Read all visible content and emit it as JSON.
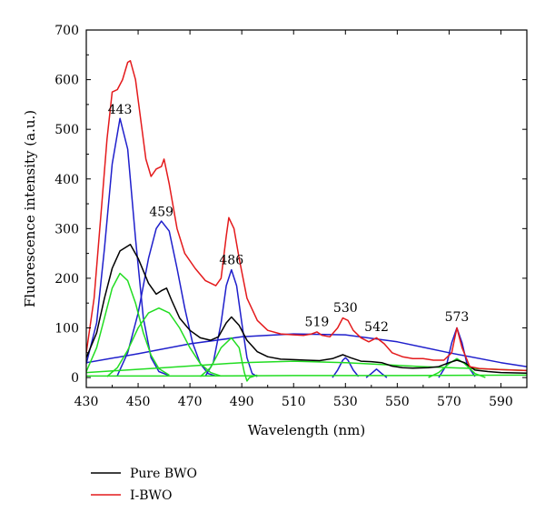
{
  "chart_data": {
    "type": "line",
    "title": "",
    "xlabel": "Wavelength (nm)",
    "ylabel": "Fluorescence intensity (a.u.)",
    "xlim": [
      430,
      600
    ],
    "ylim": [
      -20,
      700
    ],
    "xticks": [
      430,
      450,
      470,
      490,
      510,
      530,
      550,
      570,
      590
    ],
    "yticks": [
      0,
      100,
      200,
      300,
      400,
      500,
      600,
      700
    ],
    "grid": false,
    "legend_position": "bottom-left",
    "series": [
      {
        "name": "Pure BWO",
        "color": "#000000",
        "points": [
          [
            430,
            40
          ],
          [
            434,
            90
          ],
          [
            437,
            160
          ],
          [
            440,
            220
          ],
          [
            443,
            255
          ],
          [
            447,
            268
          ],
          [
            450,
            240
          ],
          [
            454,
            190
          ],
          [
            457,
            168
          ],
          [
            459,
            175
          ],
          [
            461,
            180
          ],
          [
            463,
            155
          ],
          [
            466,
            120
          ],
          [
            470,
            95
          ],
          [
            474,
            80
          ],
          [
            478,
            75
          ],
          [
            481,
            82
          ],
          [
            484,
            110
          ],
          [
            486,
            122
          ],
          [
            489,
            105
          ],
          [
            492,
            75
          ],
          [
            496,
            52
          ],
          [
            500,
            42
          ],
          [
            505,
            37
          ],
          [
            510,
            36
          ],
          [
            515,
            35
          ],
          [
            520,
            34
          ],
          [
            525,
            38
          ],
          [
            529,
            46
          ],
          [
            532,
            40
          ],
          [
            536,
            33
          ],
          [
            540,
            32
          ],
          [
            544,
            30
          ],
          [
            548,
            23
          ],
          [
            552,
            20
          ],
          [
            556,
            19
          ],
          [
            562,
            20
          ],
          [
            566,
            22
          ],
          [
            570,
            30
          ],
          [
            573,
            35
          ],
          [
            576,
            30
          ],
          [
            580,
            15
          ],
          [
            585,
            12
          ],
          [
            590,
            10
          ],
          [
            600,
            9
          ]
        ]
      },
      {
        "name": "I-BWO",
        "color": "#e41a1c",
        "points": [
          [
            430,
            50
          ],
          [
            433,
            160
          ],
          [
            436,
            350
          ],
          [
            438,
            480
          ],
          [
            440,
            575
          ],
          [
            442,
            580
          ],
          [
            444,
            600
          ],
          [
            446,
            635
          ],
          [
            447,
            638
          ],
          [
            449,
            600
          ],
          [
            451,
            520
          ],
          [
            453,
            440
          ],
          [
            455,
            405
          ],
          [
            457,
            420
          ],
          [
            459,
            425
          ],
          [
            460,
            440
          ],
          [
            462,
            390
          ],
          [
            465,
            300
          ],
          [
            468,
            250
          ],
          [
            472,
            220
          ],
          [
            476,
            195
          ],
          [
            480,
            185
          ],
          [
            482,
            200
          ],
          [
            484,
            285
          ],
          [
            485,
            322
          ],
          [
            487,
            300
          ],
          [
            489,
            240
          ],
          [
            492,
            160
          ],
          [
            496,
            115
          ],
          [
            500,
            95
          ],
          [
            505,
            88
          ],
          [
            510,
            86
          ],
          [
            514,
            85
          ],
          [
            517,
            88
          ],
          [
            519,
            92
          ],
          [
            521,
            85
          ],
          [
            524,
            82
          ],
          [
            527,
            100
          ],
          [
            529,
            120
          ],
          [
            531,
            115
          ],
          [
            533,
            95
          ],
          [
            536,
            80
          ],
          [
            539,
            72
          ],
          [
            542,
            80
          ],
          [
            545,
            68
          ],
          [
            548,
            50
          ],
          [
            552,
            42
          ],
          [
            556,
            38
          ],
          [
            560,
            38
          ],
          [
            564,
            35
          ],
          [
            568,
            35
          ],
          [
            571,
            50
          ],
          [
            573,
            100
          ],
          [
            575,
            60
          ],
          [
            578,
            22
          ],
          [
            582,
            18
          ],
          [
            590,
            16
          ],
          [
            600,
            14
          ]
        ]
      },
      {
        "name": "",
        "color": "#1f1fcc",
        "points": [
          [
            430,
            28
          ],
          [
            434,
            110
          ],
          [
            437,
            260
          ],
          [
            440,
            430
          ],
          [
            443,
            522
          ],
          [
            446,
            460
          ],
          [
            449,
            280
          ],
          [
            452,
            120
          ],
          [
            455,
            40
          ],
          [
            458,
            12
          ],
          [
            462,
            4
          ]
        ]
      },
      {
        "name": "",
        "color": "#1f1fcc",
        "points": [
          [
            442,
            4
          ],
          [
            446,
            50
          ],
          [
            450,
            130
          ],
          [
            454,
            240
          ],
          [
            457,
            300
          ],
          [
            459,
            315
          ],
          [
            462,
            295
          ],
          [
            465,
            220
          ],
          [
            468,
            140
          ],
          [
            471,
            70
          ],
          [
            474,
            28
          ],
          [
            477,
            8
          ],
          [
            480,
            3
          ]
        ]
      },
      {
        "name": "",
        "color": "#1f1fcc",
        "points": [
          [
            476,
            3
          ],
          [
            479,
            30
          ],
          [
            482,
            110
          ],
          [
            484,
            185
          ],
          [
            486,
            217
          ],
          [
            488,
            185
          ],
          [
            490,
            110
          ],
          [
            492,
            40
          ],
          [
            494,
            8
          ],
          [
            496,
            2
          ]
        ]
      },
      {
        "name": "",
        "color": "#1f1fcc",
        "points": [
          [
            525,
            0
          ],
          [
            527,
            15
          ],
          [
            529,
            35
          ],
          [
            530,
            40
          ],
          [
            531,
            35
          ],
          [
            533,
            15
          ],
          [
            535,
            2
          ]
        ]
      },
      {
        "name": "",
        "color": "#1f1fcc",
        "points": [
          [
            538,
            0
          ],
          [
            540,
            8
          ],
          [
            542,
            17
          ],
          [
            544,
            8
          ],
          [
            546,
            0
          ]
        ]
      },
      {
        "name": "",
        "color": "#1f1fcc",
        "points": [
          [
            566,
            0
          ],
          [
            569,
            25
          ],
          [
            571,
            70
          ],
          [
            573,
            100
          ],
          [
            575,
            70
          ],
          [
            577,
            25
          ],
          [
            580,
            2
          ]
        ]
      },
      {
        "name": "",
        "color": "#1f1fcc",
        "points": [
          [
            430,
            30
          ],
          [
            450,
            48
          ],
          [
            470,
            68
          ],
          [
            490,
            82
          ],
          [
            510,
            88
          ],
          [
            530,
            86
          ],
          [
            550,
            72
          ],
          [
            570,
            50
          ],
          [
            590,
            30
          ],
          [
            600,
            22
          ]
        ]
      },
      {
        "name": "",
        "color": "#22dd22",
        "points": [
          [
            430,
            12
          ],
          [
            434,
            60
          ],
          [
            437,
            120
          ],
          [
            440,
            180
          ],
          [
            443,
            210
          ],
          [
            446,
            195
          ],
          [
            449,
            150
          ],
          [
            452,
            90
          ],
          [
            455,
            45
          ],
          [
            458,
            18
          ],
          [
            462,
            5
          ]
        ]
      },
      {
        "name": "",
        "color": "#22dd22",
        "points": [
          [
            438,
            2
          ],
          [
            442,
            20
          ],
          [
            446,
            55
          ],
          [
            450,
            100
          ],
          [
            454,
            130
          ],
          [
            458,
            140
          ],
          [
            462,
            130
          ],
          [
            466,
            100
          ],
          [
            470,
            60
          ],
          [
            474,
            28
          ],
          [
            478,
            10
          ],
          [
            482,
            3
          ]
        ]
      },
      {
        "name": "",
        "color": "#22dd22",
        "points": [
          [
            474,
            2
          ],
          [
            478,
            20
          ],
          [
            482,
            60
          ],
          [
            486,
            80
          ],
          [
            489,
            60
          ],
          [
            491,
            10
          ],
          [
            492,
            -7
          ],
          [
            493,
            0
          ],
          [
            496,
            5
          ]
        ]
      },
      {
        "name": "",
        "color": "#22dd22",
        "points": [
          [
            562,
            0
          ],
          [
            566,
            10
          ],
          [
            570,
            28
          ],
          [
            573,
            38
          ],
          [
            576,
            28
          ],
          [
            580,
            8
          ],
          [
            584,
            0
          ]
        ]
      },
      {
        "name": "",
        "color": "#22dd22",
        "points": [
          [
            430,
            10
          ],
          [
            460,
            20
          ],
          [
            490,
            30
          ],
          [
            510,
            33
          ],
          [
            530,
            30
          ],
          [
            560,
            22
          ],
          [
            600,
            14
          ]
        ]
      },
      {
        "name": "",
        "color": "#22dd22",
        "points": [
          [
            430,
            3
          ],
          [
            470,
            3
          ],
          [
            510,
            4
          ],
          [
            550,
            4
          ],
          [
            600,
            5
          ]
        ]
      }
    ],
    "annotations": [
      {
        "text": "443",
        "x": 443,
        "y": 528
      },
      {
        "text": "459",
        "x": 459,
        "y": 322
      },
      {
        "text": "486",
        "x": 486,
        "y": 225
      },
      {
        "text": "519",
        "x": 519,
        "y": 100
      },
      {
        "text": "530",
        "x": 530,
        "y": 128
      },
      {
        "text": "542",
        "x": 542,
        "y": 90
      },
      {
        "text": "573",
        "x": 573,
        "y": 110
      }
    ],
    "legend": [
      {
        "label": "Pure BWO",
        "color": "#000000"
      },
      {
        "label": "I-BWO",
        "color": "#e41a1c"
      }
    ]
  }
}
